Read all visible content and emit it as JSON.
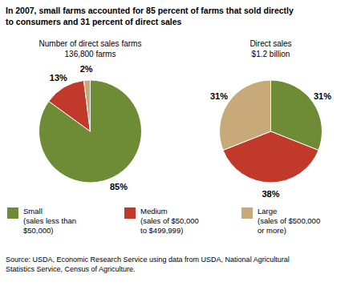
{
  "title": "In 2007, small farms accounted for 85 percent of farms that sold directly\nto consumers and 31 percent of direct sales",
  "source": "Source: USDA, Economic Research Service using data from USDA, National Agricultural\nStatistics Service, Census of Agriculture.",
  "chart_data": [
    {
      "type": "pie",
      "title": "Number of direct sales farms",
      "subtitle": "136,800 farms",
      "categories": [
        "Small\n(sales less than\n$50,000)",
        "Medium\n(sales of $50,000\nto $499,999)",
        "Large\n(sales of $500,000\nor more)"
      ],
      "values": [
        85,
        13,
        2
      ],
      "value_labels": [
        "85%",
        "13%",
        "2%"
      ],
      "data_labels": true,
      "colors": [
        "#6e8c35",
        "#c0392b",
        "#c8a97a"
      ],
      "legend": "bottom"
    },
    {
      "type": "pie",
      "title": "Direct sales",
      "subtitle": "$1.2 billion",
      "categories": [
        "Small\n(sales less than\n$50,000)",
        "Medium\n(sales of $50,000\nto $499,999)",
        "Large\n(sales of $500,000\nor more)"
      ],
      "values": [
        31,
        38,
        31
      ],
      "value_labels": [
        "31%",
        "38%",
        "31%"
      ],
      "data_labels": true,
      "colors": [
        "#6e8c35",
        "#c0392b",
        "#c8a97a"
      ],
      "legend": "bottom"
    }
  ]
}
